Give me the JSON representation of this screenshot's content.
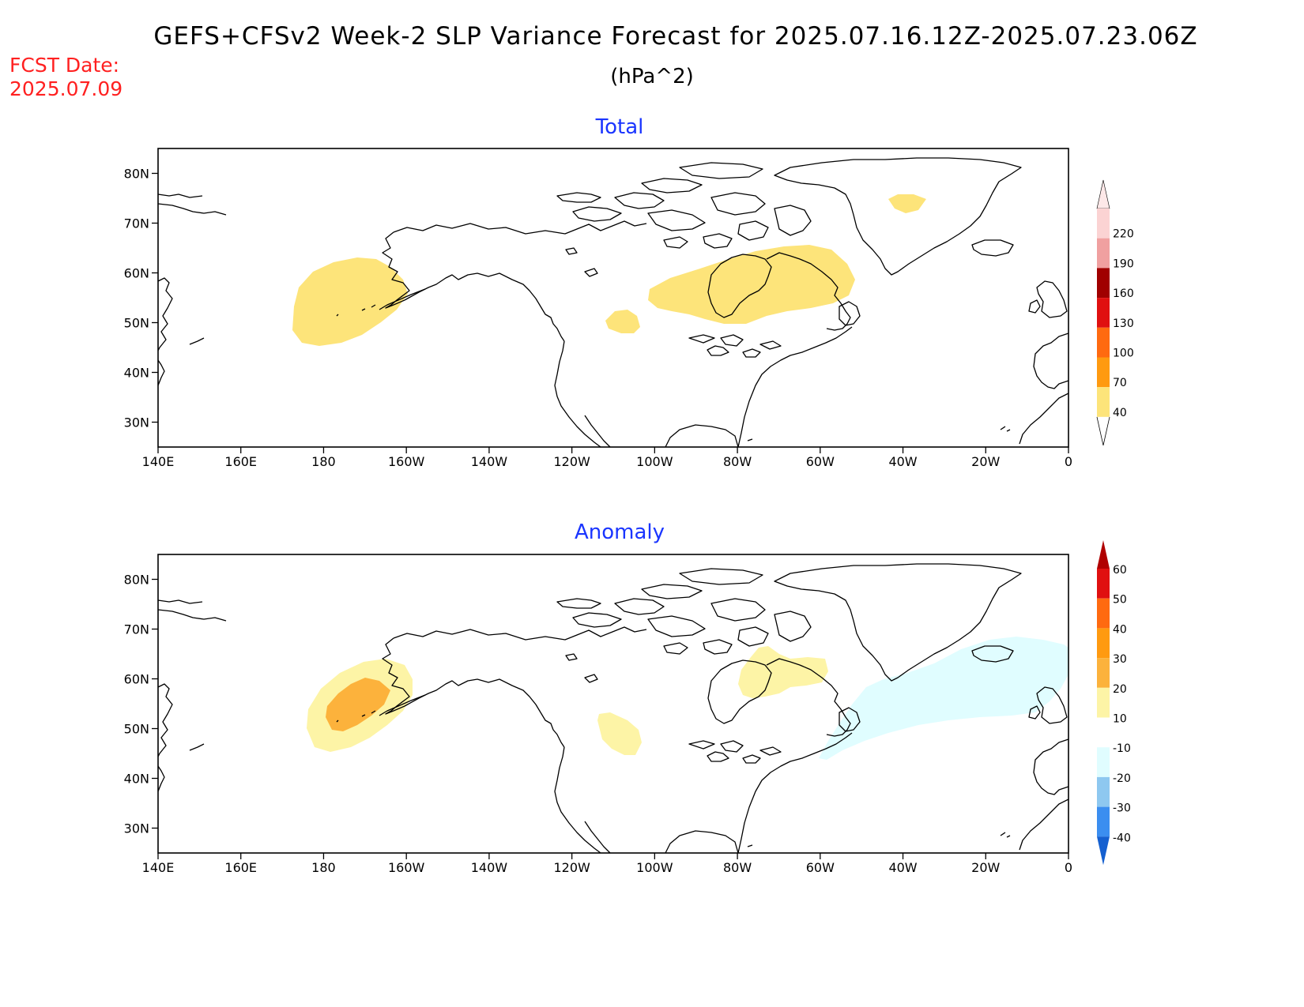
{
  "header": {
    "title": "GEFS+CFSv2 Week-2 SLP Variance Forecast for 2025.07.16.12Z-2025.07.23.06Z",
    "units": "(hPa^2)",
    "fcst_label": "FCST Date:",
    "fcst_date": "2025.07.09"
  },
  "map": {
    "lon_labels": [
      "140E",
      "160E",
      "180",
      "160W",
      "140W",
      "120W",
      "100W",
      "80W",
      "60W",
      "40W",
      "20W",
      "0"
    ],
    "lat_labels": [
      "80N",
      "70N",
      "60N",
      "50N",
      "40N",
      "30N"
    ],
    "lon_range": [
      140,
      360
    ],
    "lat_range": [
      25,
      85
    ]
  },
  "panels": [
    {
      "title": "Total",
      "colorbar": {
        "labels": [
          "220",
          "190",
          "160",
          "130",
          "100",
          "70",
          "40"
        ],
        "colors": [
          "#fbd3d3",
          "#f0a0a0",
          "#a00000",
          "#e01010",
          "#ff6a10",
          "#ff9a10",
          "#fde47a"
        ]
      },
      "shaded_regions": [
        {
          "name": "North Pacific (Bering / Aleutians)",
          "level": "40-70",
          "color": "#fde47a"
        },
        {
          "name": "Hudson Bay / Quebec / Labrador",
          "level": "40-70",
          "color": "#fde47a"
        },
        {
          "name": "Central Canada prairies",
          "level": "40-70",
          "color": "#fde47a"
        },
        {
          "name": "Eastern Greenland",
          "level": "40-70",
          "color": "#fde47a"
        }
      ]
    },
    {
      "title": "Anomaly",
      "colorbar": {
        "labels": [
          "60",
          "50",
          "40",
          "30",
          "20",
          "10",
          "-10",
          "-20",
          "-30",
          "-40"
        ],
        "colors": [
          "#b00000",
          "#e01010",
          "#ff6a10",
          "#ff9a10",
          "#fcb23c",
          "#fdf4a6",
          "#ffffff",
          "#e0fdff",
          "#8ec8f0",
          "#3b8ef0",
          "#1560d0"
        ]
      },
      "shaded_regions": [
        {
          "name": "North Pacific outer",
          "level": "10-20",
          "color": "#fdf4a6"
        },
        {
          "name": "North Pacific core",
          "level": "20-30",
          "color": "#fcb23c"
        },
        {
          "name": "Central Canada",
          "level": "10-20",
          "color": "#fdf4a6"
        },
        {
          "name": "Hudson Bay / Labrador",
          "level": "10-20",
          "color": "#fdf4a6"
        },
        {
          "name": "North Atlantic",
          "level": "-20 to -10",
          "color": "#e0fdff"
        }
      ]
    }
  ]
}
